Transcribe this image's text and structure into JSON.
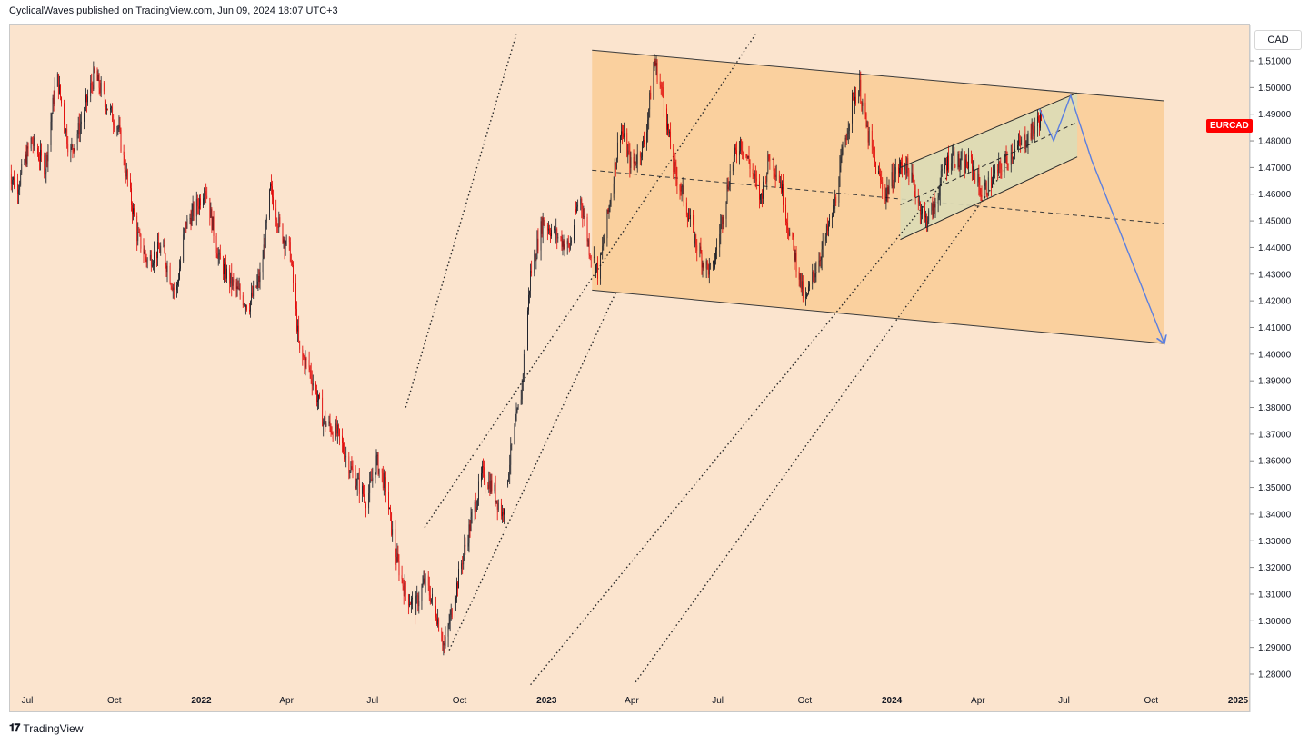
{
  "header": {
    "publisher_line": "CyclicalWaves published on TradingView.com, Jun 09, 2024 18:07 UTC+3"
  },
  "currency": "CAD",
  "symbol": "EURCAD",
  "brand": "TradingView",
  "colors": {
    "background": "#fbe4ce",
    "channel_fill": "#f9cc95",
    "rising_channel_fill": "#dcdcb6",
    "up_candle": "#131722",
    "down_candle": "#e00000",
    "projection": "#5b7fe0",
    "symbol_badge": "#ff0000"
  },
  "chart_data": {
    "type": "candlestick",
    "symbol": "EURCAD",
    "ylim": [
      1.275,
      1.52
    ],
    "y_ticks": [
      "1.51000",
      "1.50000",
      "1.49000",
      "1.48000",
      "1.47000",
      "1.46000",
      "1.45000",
      "1.44000",
      "1.43000",
      "1.42000",
      "1.41000",
      "1.40000",
      "1.39000",
      "1.38000",
      "1.37000",
      "1.36000",
      "1.35000",
      "1.34000",
      "1.33000",
      "1.32000",
      "1.31000",
      "1.30000",
      "1.29000",
      "1.28000"
    ],
    "x_ticks": [
      {
        "label": "Jul",
        "date": "2021-07-01",
        "bold": false
      },
      {
        "label": "Oct",
        "date": "2021-10-01",
        "bold": false
      },
      {
        "label": "2022",
        "date": "2022-01-01",
        "bold": true
      },
      {
        "label": "Apr",
        "date": "2022-04-01",
        "bold": false
      },
      {
        "label": "Jul",
        "date": "2022-07-01",
        "bold": false
      },
      {
        "label": "Oct",
        "date": "2022-10-01",
        "bold": false
      },
      {
        "label": "2023",
        "date": "2023-01-01",
        "bold": true
      },
      {
        "label": "Apr",
        "date": "2023-04-01",
        "bold": false
      },
      {
        "label": "Jul",
        "date": "2023-07-01",
        "bold": false
      },
      {
        "label": "Oct",
        "date": "2023-10-01",
        "bold": false
      },
      {
        "label": "2024",
        "date": "2024-01-01",
        "bold": true
      },
      {
        "label": "Apr",
        "date": "2024-04-01",
        "bold": false
      },
      {
        "label": "Jul",
        "date": "2024-07-01",
        "bold": false
      },
      {
        "label": "Oct",
        "date": "2024-10-01",
        "bold": false
      },
      {
        "label": "2025",
        "date": "2025-01-01",
        "bold": true
      }
    ],
    "price_path": [
      [
        "2021-06-10",
        1.47
      ],
      [
        "2021-06-20",
        1.462
      ],
      [
        "2021-07-05",
        1.48
      ],
      [
        "2021-07-20",
        1.47
      ],
      [
        "2021-08-01",
        1.505
      ],
      [
        "2021-08-15",
        1.475
      ],
      [
        "2021-08-25",
        1.485
      ],
      [
        "2021-09-10",
        1.505
      ],
      [
        "2021-09-25",
        1.492
      ],
      [
        "2021-10-05",
        1.485
      ],
      [
        "2021-10-15",
        1.465
      ],
      [
        "2021-10-25",
        1.445
      ],
      [
        "2021-11-05",
        1.435
      ],
      [
        "2021-11-20",
        1.44
      ],
      [
        "2021-12-05",
        1.422
      ],
      [
        "2021-12-15",
        1.448
      ],
      [
        "2021-12-28",
        1.456
      ],
      [
        "2022-01-05",
        1.463
      ],
      [
        "2022-01-20",
        1.435
      ],
      [
        "2022-02-05",
        1.425
      ],
      [
        "2022-02-20",
        1.418
      ],
      [
        "2022-03-05",
        1.43
      ],
      [
        "2022-03-15",
        1.462
      ],
      [
        "2022-03-25",
        1.447
      ],
      [
        "2022-04-05",
        1.438
      ],
      [
        "2022-04-15",
        1.4
      ],
      [
        "2022-04-25",
        1.395
      ],
      [
        "2022-05-10",
        1.375
      ],
      [
        "2022-05-25",
        1.37
      ],
      [
        "2022-06-10",
        1.355
      ],
      [
        "2022-06-25",
        1.345
      ],
      [
        "2022-07-05",
        1.36
      ],
      [
        "2022-07-15",
        1.35
      ],
      [
        "2022-07-25",
        1.325
      ],
      [
        "2022-08-05",
        1.31
      ],
      [
        "2022-08-15",
        1.305
      ],
      [
        "2022-08-25",
        1.315
      ],
      [
        "2022-09-05",
        1.305
      ],
      [
        "2022-09-15",
        1.29
      ],
      [
        "2022-09-25",
        1.308
      ],
      [
        "2022-10-05",
        1.325
      ],
      [
        "2022-10-15",
        1.34
      ],
      [
        "2022-10-25",
        1.355
      ],
      [
        "2022-11-05",
        1.35
      ],
      [
        "2022-11-15",
        1.34
      ],
      [
        "2022-11-25",
        1.365
      ],
      [
        "2022-12-05",
        1.385
      ],
      [
        "2022-12-15",
        1.43
      ],
      [
        "2022-12-28",
        1.45
      ],
      [
        "2023-01-10",
        1.445
      ],
      [
        "2023-01-25",
        1.44
      ],
      [
        "2023-02-05",
        1.46
      ],
      [
        "2023-02-15",
        1.44
      ],
      [
        "2023-02-25",
        1.43
      ],
      [
        "2023-03-10",
        1.46
      ],
      [
        "2023-03-20",
        1.485
      ],
      [
        "2023-04-01",
        1.47
      ],
      [
        "2023-04-15",
        1.48
      ],
      [
        "2023-04-25",
        1.51
      ],
      [
        "2023-05-05",
        1.495
      ],
      [
        "2023-05-15",
        1.47
      ],
      [
        "2023-05-25",
        1.46
      ],
      [
        "2023-06-05",
        1.445
      ],
      [
        "2023-06-15",
        1.435
      ],
      [
        "2023-06-25",
        1.43
      ],
      [
        "2023-07-05",
        1.45
      ],
      [
        "2023-07-15",
        1.47
      ],
      [
        "2023-07-25",
        1.48
      ],
      [
        "2023-08-05",
        1.47
      ],
      [
        "2023-08-15",
        1.458
      ],
      [
        "2023-08-25",
        1.475
      ],
      [
        "2023-09-05",
        1.465
      ],
      [
        "2023-09-15",
        1.445
      ],
      [
        "2023-09-25",
        1.43
      ],
      [
        "2023-10-01",
        1.418
      ],
      [
        "2023-10-10",
        1.43
      ],
      [
        "2023-10-20",
        1.44
      ],
      [
        "2023-11-01",
        1.455
      ],
      [
        "2023-11-10",
        1.475
      ],
      [
        "2023-11-20",
        1.495
      ],
      [
        "2023-11-28",
        1.5
      ],
      [
        "2023-12-05",
        1.485
      ],
      [
        "2023-12-15",
        1.47
      ],
      [
        "2023-12-25",
        1.46
      ],
      [
        "2024-01-05",
        1.468
      ],
      [
        "2024-01-15",
        1.472
      ],
      [
        "2024-01-25",
        1.462
      ],
      [
        "2024-02-05",
        1.45
      ],
      [
        "2024-02-15",
        1.455
      ],
      [
        "2024-02-25",
        1.47
      ],
      [
        "2024-03-05",
        1.475
      ],
      [
        "2024-03-15",
        1.47
      ],
      [
        "2024-03-25",
        1.472
      ],
      [
        "2024-04-05",
        1.46
      ],
      [
        "2024-04-15",
        1.465
      ],
      [
        "2024-04-25",
        1.47
      ],
      [
        "2024-05-05",
        1.475
      ],
      [
        "2024-05-15",
        1.478
      ],
      [
        "2024-05-25",
        1.482
      ],
      [
        "2024-06-05",
        1.488
      ],
      [
        "2024-06-09",
        1.49
      ]
    ],
    "drawings": {
      "descending_channel": {
        "upper": [
          [
            "2023-02-18",
            1.514
          ],
          [
            "2024-10-15",
            1.495
          ]
        ],
        "lower": [
          [
            "2023-02-18",
            1.424
          ],
          [
            "2024-10-15",
            1.404
          ]
        ],
        "mid": [
          [
            "2023-02-18",
            1.469
          ],
          [
            "2024-10-15",
            1.449
          ]
        ]
      },
      "rising_channel": {
        "upper": [
          [
            "2024-01-10",
            1.47
          ],
          [
            "2024-07-15",
            1.498
          ]
        ],
        "lower": [
          [
            "2024-01-10",
            1.443
          ],
          [
            "2024-07-15",
            1.474
          ]
        ],
        "mid": [
          [
            "2024-01-10",
            1.456
          ],
          [
            "2024-07-15",
            1.487
          ]
        ]
      },
      "dotted_parallels": [
        [
          [
            "2022-08-05",
            1.38
          ],
          [
            "2022-11-30",
            1.52
          ]
        ],
        [
          [
            "2022-08-25",
            1.335
          ],
          [
            "2023-08-10",
            1.52
          ]
        ],
        [
          [
            "2022-09-20",
            1.289
          ],
          [
            "2023-03-15",
            1.423
          ]
        ],
        [
          [
            "2022-12-15",
            1.276
          ],
          [
            "2024-03-01",
            1.467
          ]
        ],
        [
          [
            "2023-04-05",
            1.277
          ],
          [
            "2024-05-01",
            1.47
          ]
        ]
      ],
      "projection": [
        [
          "2024-06-05",
          1.492
        ],
        [
          "2024-06-20",
          1.48
        ],
        [
          "2024-07-08",
          1.497
        ],
        [
          "2024-07-30",
          1.473
        ],
        [
          "2024-10-15",
          1.404
        ]
      ]
    }
  }
}
